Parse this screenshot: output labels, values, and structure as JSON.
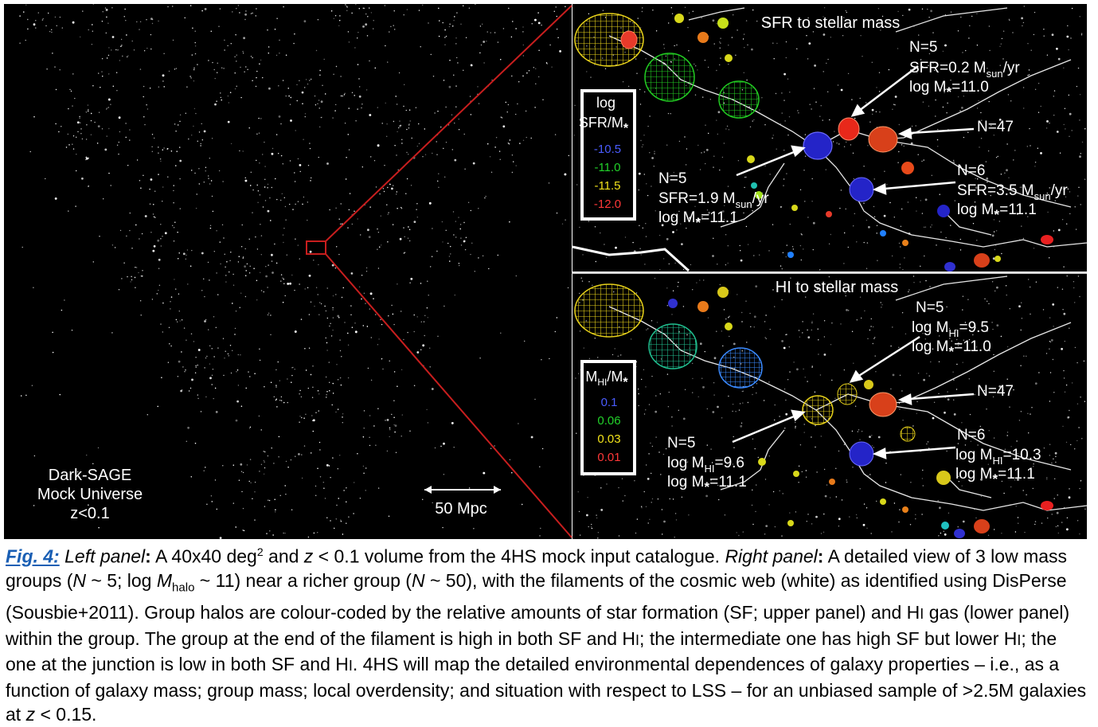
{
  "left_panel": {
    "label_lines": [
      "Dark-SAGE",
      "Mock Universe",
      "z<0.1"
    ],
    "scale_bar_label": "50 Mpc"
  },
  "top_panel": {
    "title": "SFR to stellar mass",
    "legend": {
      "title_line1": "log",
      "title_line2": "SFR/M",
      "title_star": "*",
      "entries": [
        {
          "value": "-10.5",
          "color": "#4a5cff"
        },
        {
          "value": "-11.0",
          "color": "#22d22a"
        },
        {
          "value": "-11.5",
          "color": "#f2e21a"
        },
        {
          "value": "-12.0",
          "color": "#ff3838"
        }
      ]
    },
    "annotations": {
      "group_a": {
        "n": "N=5",
        "prop_pre": "SFR=0.2 M",
        "prop_sub": "sun",
        "prop_post": "/yr",
        "mass_pre": "log M",
        "mass_sub": "*",
        "mass_post": "=11.0"
      },
      "group_b": {
        "n": "N=47"
      },
      "group_c": {
        "n": "N=5",
        "prop_pre": "SFR=1.9 M",
        "prop_sub": "sun",
        "prop_post": "/yr",
        "mass_pre": "log M",
        "mass_sub": "*",
        "mass_post": "=11.1"
      },
      "group_d": {
        "n": "N=6",
        "prop_pre": "SFR=3.5 M",
        "prop_sub": "sun",
        "prop_post": "/yr",
        "mass_pre": "log M",
        "mass_sub": "*",
        "mass_post": "=11.1"
      }
    }
  },
  "bottom_panel": {
    "title": "HI to stellar mass",
    "legend": {
      "title_pre": "M",
      "title_sub": "HI",
      "title_mid": "/M",
      "title_star": "*",
      "entries": [
        {
          "value": "0.1",
          "color": "#4a5cff"
        },
        {
          "value": "0.06",
          "color": "#22d22a"
        },
        {
          "value": "0.03",
          "color": "#f2e21a"
        },
        {
          "value": "0.01",
          "color": "#ff3838"
        }
      ]
    },
    "annotations": {
      "group_a": {
        "n": "N=5",
        "prop_pre": "log M",
        "prop_sub": "HI",
        "prop_post": "=9.5",
        "mass_pre": "log M",
        "mass_sub": "*",
        "mass_post": "=11.0"
      },
      "group_b": {
        "n": "N=47"
      },
      "group_c": {
        "n": "N=5",
        "prop_pre": "log M",
        "prop_sub": "HI",
        "prop_post": "=9.6",
        "mass_pre": "log M",
        "mass_sub": "*",
        "mass_post": "=11.1"
      },
      "group_d": {
        "n": "N=6",
        "prop_pre": "log M",
        "prop_sub": "HI",
        "prop_post": "=10.3",
        "mass_pre": "log M",
        "mass_sub": "*",
        "mass_post": "=11.1"
      }
    }
  },
  "caption": {
    "fig_label": "Fig. 4:",
    "left_label": "Left panel",
    "colon": ":",
    "t1": " A 40x40 deg",
    "sup2": "2",
    "t2": " and ",
    "z": "z",
    "t3": " < 0.1 volume from the 4HS mock input catalogue. ",
    "right_label": "Right panel",
    "t4": " A detailed view of 3 low mass groups (",
    "N": "N",
    "t5": " ~ 5; log ",
    "M": "M",
    "halo": "halo",
    "t6": " ~ 11) near a richer group (",
    "t7": " ~ 50), with the filaments of the cosmic web (white) as identified using DisPerse (Sousbie+2011). Group halos are colour-coded by the relative amounts of star formation (SF; upper panel) and H",
    "I": "I",
    "t8": " gas (lower panel) within the group. The group at the end of the filament is high in both SF and H",
    "t9": "; the intermediate one has high SF but lower H",
    "t10": "; the one at the junction is low in both SF and H",
    "t11": ". 4HS will map the detailed environmental dependences of galaxy properties – i.e., as a function of galaxy mass; group mass; local overdensity; and situation with respect to LSS – for an unbiased sample of >2.5M galaxies at ",
    "t12": " < 0.15."
  }
}
